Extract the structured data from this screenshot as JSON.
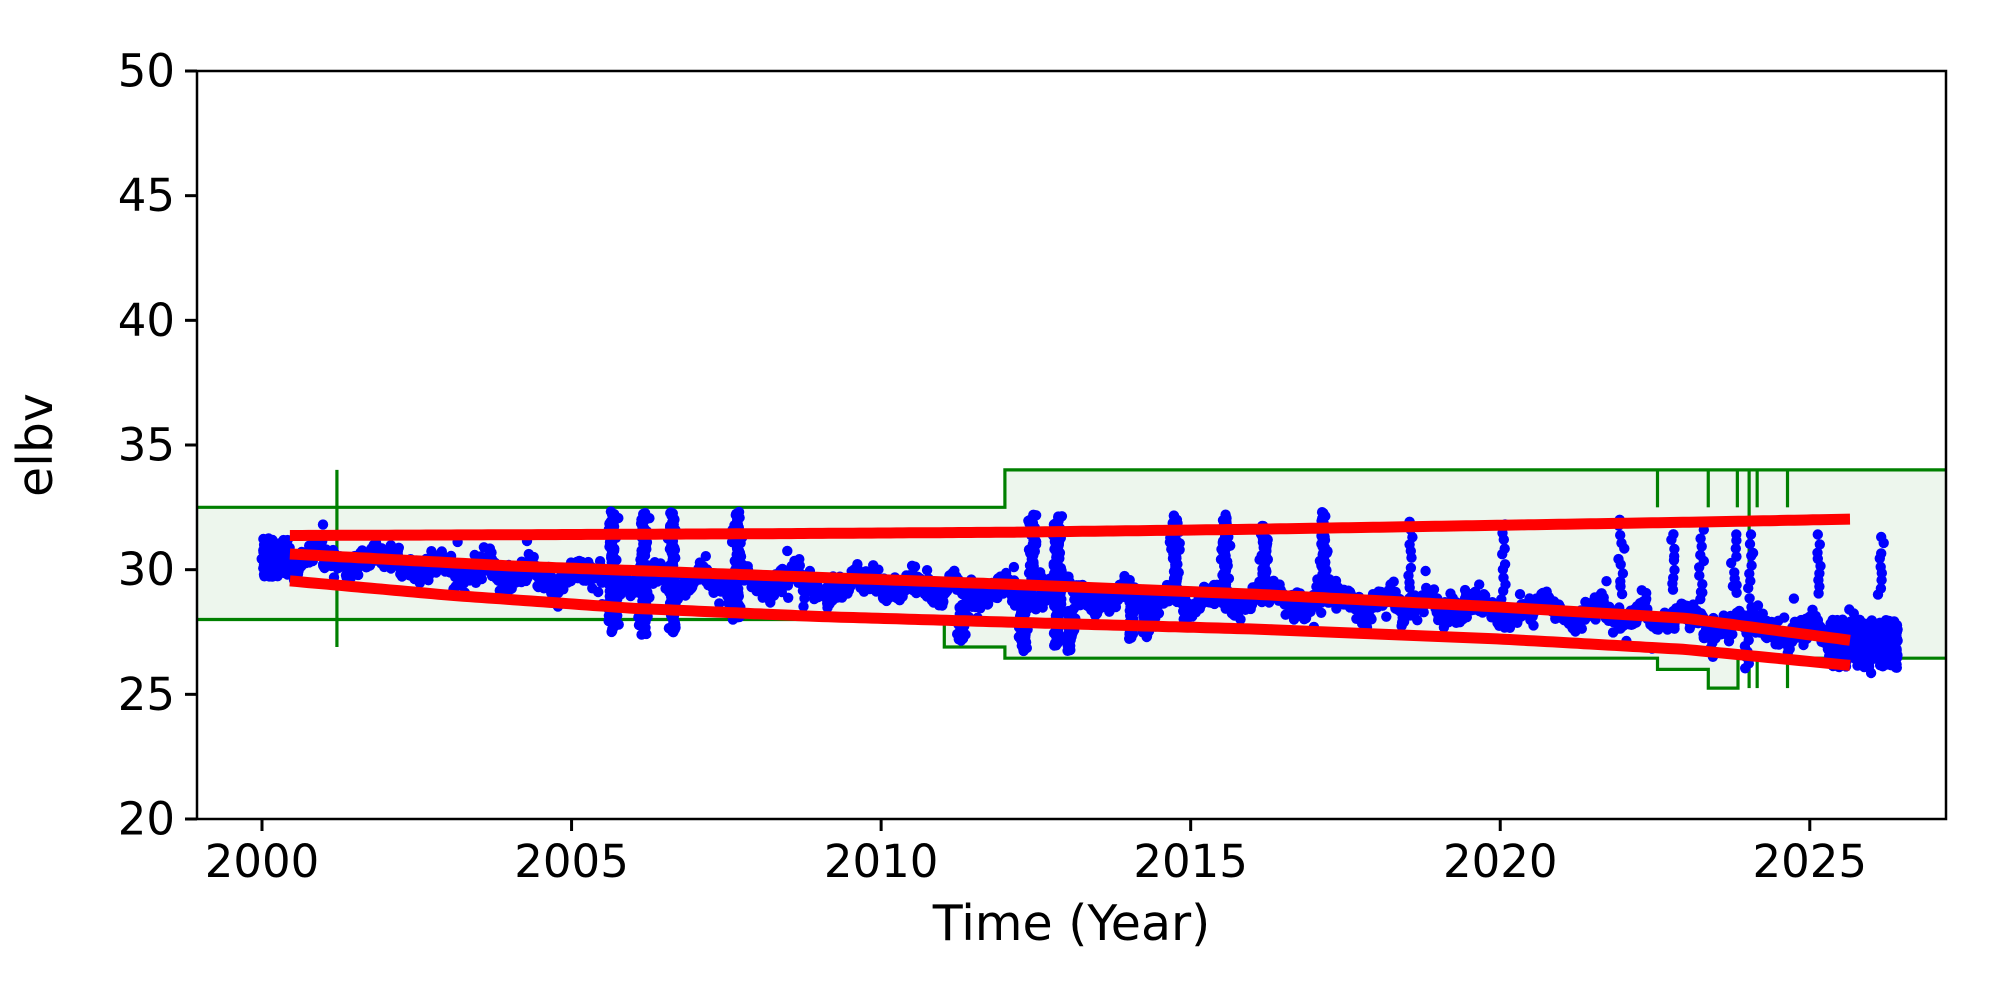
{
  "chart_data": {
    "type": "scatter",
    "title": "",
    "xlabel": "Time (Year)",
    "ylabel": "elbv",
    "legend": null,
    "axes": {
      "xlim": [
        1998.95,
        2027.2
      ],
      "ylim": [
        20,
        50
      ],
      "xticks": [
        2000,
        2005,
        2010,
        2015,
        2020,
        2025
      ],
      "xtick_labels": [
        "2000",
        "2005",
        "2010",
        "2015",
        "2020",
        "2025"
      ],
      "yticks": [
        20,
        25,
        30,
        35,
        40,
        45,
        50
      ],
      "ytick_labels": [
        "20",
        "25",
        "30",
        "35",
        "40",
        "45",
        "50"
      ],
      "grid": false
    },
    "colors": {
      "scatter": "#0000ff",
      "fit": "#ff0000",
      "bounds": "#008000",
      "bounds_fill": "rgba(0,128,0,0.07)",
      "spine": "#000000"
    },
    "bounds": {
      "upper_steps": [
        [
          1998.95,
          32.5
        ],
        [
          2012.0,
          34.0
        ]
      ],
      "lower_steps": [
        [
          1998.95,
          28.0
        ],
        [
          2011.02,
          26.9
        ],
        [
          2012.0,
          26.45
        ],
        [
          2022.54,
          26.0
        ],
        [
          2023.36,
          25.25
        ],
        [
          2023.84,
          26.45
        ]
      ],
      "verticals": [
        [
          2001.21,
          26.9,
          34.0
        ],
        [
          2022.54,
          32.5,
          34.0
        ],
        [
          2023.36,
          32.5,
          34.0
        ],
        [
          2023.83,
          32.5,
          34.0
        ],
        [
          2024.02,
          30.1,
          34.0
        ],
        [
          2024.02,
          25.25,
          26.45
        ],
        [
          2024.15,
          32.5,
          34.0
        ],
        [
          2024.15,
          25.25,
          26.45
        ],
        [
          2024.64,
          32.5,
          34.0
        ],
        [
          2024.64,
          25.25,
          26.45
        ]
      ]
    },
    "fit_lines": {
      "width": 11,
      "upper": [
        [
          2000.45,
          31.37
        ],
        [
          2004,
          31.4
        ],
        [
          2008,
          31.44
        ],
        [
          2012,
          31.5
        ],
        [
          2016,
          31.62
        ],
        [
          2020,
          31.78
        ],
        [
          2023,
          31.9
        ],
        [
          2025.7,
          32.03
        ]
      ],
      "mean": [
        [
          2000.45,
          30.63
        ],
        [
          2004,
          30.15
        ],
        [
          2008,
          29.78
        ],
        [
          2012,
          29.42
        ],
        [
          2016,
          29.02
        ],
        [
          2020,
          28.5
        ],
        [
          2023,
          28.05
        ],
        [
          2025.7,
          27.15
        ]
      ],
      "lower": [
        [
          2000.45,
          29.55
        ],
        [
          2003,
          28.98
        ],
        [
          2006,
          28.45
        ],
        [
          2009,
          28.12
        ],
        [
          2012,
          27.9
        ],
        [
          2016,
          27.62
        ],
        [
          2020,
          27.22
        ],
        [
          2023,
          26.8
        ],
        [
          2025.7,
          26.15
        ]
      ]
    },
    "scatter": {
      "seed": 42,
      "span": [
        2000.05,
        2026.38
      ],
      "dt": 0.025,
      "dot_radius": 5.2,
      "trend": [
        [
          2000.05,
          30.35
        ],
        [
          2000.5,
          30.45
        ],
        [
          2001,
          30.5
        ],
        [
          2001.5,
          30.42
        ],
        [
          2002,
          30.28
        ],
        [
          2003,
          30.05
        ],
        [
          2004,
          29.9
        ],
        [
          2005,
          29.72
        ],
        [
          2006,
          29.55
        ],
        [
          2007,
          29.52
        ],
        [
          2008,
          29.5
        ],
        [
          2009,
          29.42
        ],
        [
          2010,
          29.4
        ],
        [
          2011,
          29.18
        ],
        [
          2012,
          29.05
        ],
        [
          2013,
          29.0
        ],
        [
          2014,
          28.85
        ],
        [
          2015,
          28.72
        ],
        [
          2016,
          28.85
        ],
        [
          2017,
          28.82
        ],
        [
          2018,
          28.62
        ],
        [
          2019,
          28.52
        ],
        [
          2020,
          28.45
        ],
        [
          2021,
          28.35
        ],
        [
          2022,
          28.2
        ],
        [
          2023,
          28.05
        ],
        [
          2024,
          27.7
        ],
        [
          2025,
          27.45
        ],
        [
          2025.7,
          27.25
        ],
        [
          2026.38,
          26.85
        ]
      ],
      "spikes_solid": [
        [
          2005.66,
          27.5,
          32.35
        ],
        [
          2006.17,
          27.35,
          32.3
        ],
        [
          2006.63,
          27.45,
          32.35
        ],
        [
          2007.67,
          28.0,
          32.35
        ],
        [
          2012.45,
          29.2,
          32.2
        ],
        [
          2012.85,
          26.9,
          32.2
        ],
        [
          2014.75,
          29.0,
          32.2
        ],
        [
          2015.55,
          29.0,
          32.2
        ],
        [
          2016.2,
          28.7,
          31.8
        ],
        [
          2017.15,
          29.2,
          32.3
        ],
        [
          2011.3,
          27.1,
          28.6
        ],
        [
          2012.3,
          26.75,
          28.4
        ],
        [
          2013.05,
          26.7,
          28.5
        ],
        [
          2014.05,
          27.2,
          29.0
        ],
        [
          2014.3,
          27.25,
          29.0
        ]
      ],
      "spikes_dotted": [
        [
          2018.55,
          28.8,
          32.1
        ],
        [
          2020.05,
          28.0,
          32.0
        ],
        [
          2021.95,
          28.8,
          32.2
        ],
        [
          2022.8,
          29.0,
          31.6
        ],
        [
          2023.25,
          28.6,
          31.7
        ],
        [
          2023.8,
          28.9,
          31.6
        ],
        [
          2024.05,
          28.4,
          31.5
        ],
        [
          2025.15,
          28.9,
          31.5
        ],
        [
          2026.15,
          28.8,
          31.5
        ],
        [
          2023.4,
          26.4,
          27.8
        ],
        [
          2023.97,
          25.9,
          27.5
        ]
      ],
      "clusters": [
        {
          "t0": 2000.02,
          "t1": 2000.45,
          "lo": 29.7,
          "hi": 31.25,
          "n": 280
        },
        {
          "t0": 2025.3,
          "t1": 2026.42,
          "lo": 26.05,
          "hi": 28.0,
          "n": 480
        }
      ]
    }
  }
}
